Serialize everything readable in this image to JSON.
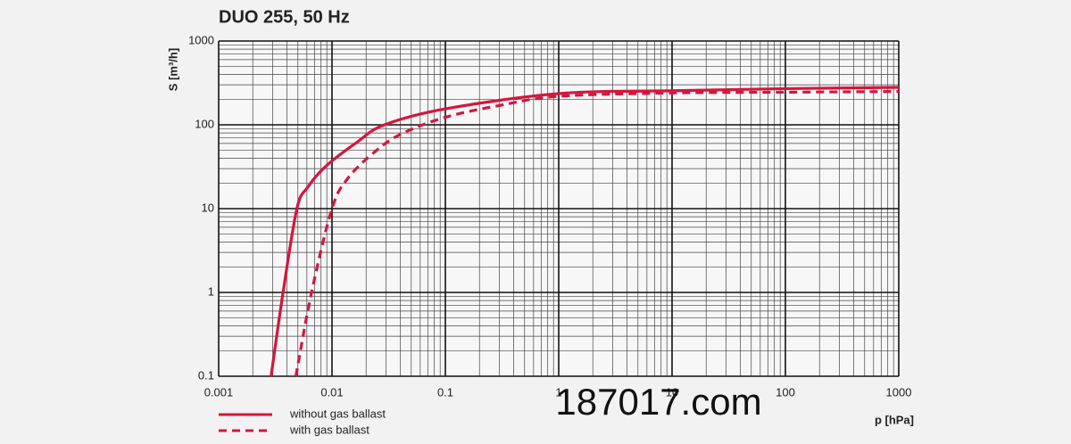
{
  "chart_data": {
    "type": "line",
    "title": "DUO 255, 50 Hz",
    "x_label": "p [hPa]",
    "y_label": "S [m³/h]",
    "x_log": true,
    "y_log": true,
    "grid": true,
    "minor_grid": true,
    "xlim": [
      0.001,
      1000
    ],
    "xticks": [
      0.001,
      0.01,
      0.1,
      1,
      10,
      100,
      1000
    ],
    "ylim": [
      0.1,
      1000
    ],
    "yticks": [
      0.1,
      1,
      10,
      100,
      1000
    ],
    "legend_position": "bottom-left",
    "watermark": "187017.com",
    "series": [
      {
        "name": "without gas ballast",
        "color": "#d4163e",
        "dashed": false,
        "x": [
          0.0029,
          0.0037,
          0.0049,
          0.0061,
          0.0088,
          0.0166,
          0.029,
          0.1,
          1,
          10,
          100,
          1000
        ],
        "values": [
          0.1,
          1,
          10,
          18,
          32,
          62,
          100,
          155,
          236,
          255,
          270,
          280
        ]
      },
      {
        "name": "with gas ballast",
        "color": "#d4163e",
        "dashed": true,
        "x": [
          0.0048,
          0.0066,
          0.01,
          0.0138,
          0.024,
          0.041,
          0.1,
          0.3,
          1,
          10,
          100,
          1000
        ],
        "values": [
          0.1,
          1,
          10,
          23,
          48,
          78,
          123,
          170,
          219,
          240,
          245,
          250
        ]
      }
    ]
  }
}
